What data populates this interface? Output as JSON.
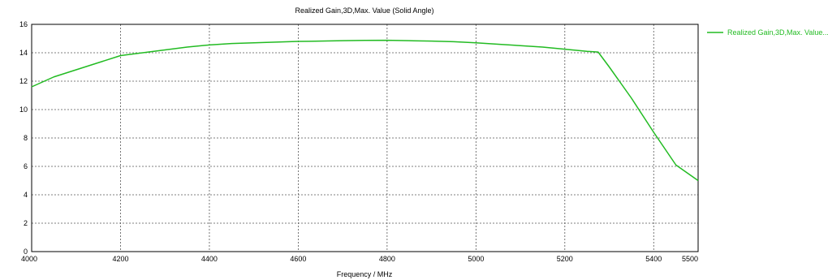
{
  "chart_data": {
    "type": "line",
    "title": "Realized Gain,3D,Max. Value (Solid Angle)",
    "xlabel": "Frequency / MHz",
    "ylabel": "",
    "xlim": [
      4000,
      5500
    ],
    "ylim": [
      0,
      16
    ],
    "x_ticks": [
      4000,
      4200,
      4400,
      4600,
      4800,
      5000,
      5200,
      5400,
      5500
    ],
    "y_ticks": [
      0,
      2,
      4,
      6,
      8,
      10,
      12,
      14,
      16
    ],
    "grid": true,
    "legend_position": "top-right",
    "series": [
      {
        "name": "Realized Gain,3D,Max. Value...",
        "color": "#22bb22",
        "x": [
          4000,
          4050,
          4100,
          4150,
          4200,
          4250,
          4300,
          4350,
          4400,
          4450,
          4500,
          4550,
          4600,
          4650,
          4700,
          4750,
          4800,
          4850,
          4900,
          4950,
          5000,
          5050,
          5100,
          5150,
          5200,
          5250,
          5275,
          5300,
          5350,
          5400,
          5450,
          5500
        ],
        "y": [
          11.6,
          12.3,
          12.8,
          13.3,
          13.8,
          14.0,
          14.2,
          14.4,
          14.55,
          14.65,
          14.7,
          14.75,
          14.8,
          14.82,
          14.85,
          14.87,
          14.88,
          14.85,
          14.82,
          14.78,
          14.7,
          14.6,
          14.5,
          14.4,
          14.25,
          14.1,
          14.05,
          13.0,
          10.8,
          8.4,
          6.1,
          5.0
        ]
      }
    ]
  }
}
